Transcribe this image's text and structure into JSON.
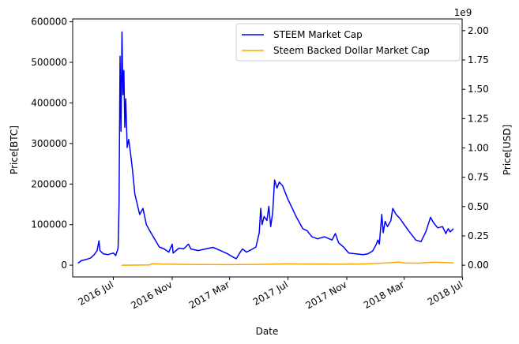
{
  "chart_data": {
    "type": "line",
    "xlabel": "Date",
    "ylabel_left": "Price[BTC]",
    "ylabel_right": "Price[USD]",
    "right_axis_offset_text": "1e9",
    "x_range": [
      "2016-04-07",
      "2018-06-30"
    ],
    "x_ticks": [
      {
        "date": "2016-07-01",
        "label": "2016 Jul"
      },
      {
        "date": "2016-11-01",
        "label": "2016 Nov"
      },
      {
        "date": "2017-03-01",
        "label": "2017 Mar"
      },
      {
        "date": "2017-07-01",
        "label": "2017 Jul"
      },
      {
        "date": "2017-11-01",
        "label": "2017 Nov"
      },
      {
        "date": "2018-03-01",
        "label": "2018 Mar"
      },
      {
        "date": "2018-07-01",
        "label": "2018 Jul"
      }
    ],
    "ylim_left": [
      -29000,
      607000
    ],
    "yticks_left": [
      {
        "value": 0,
        "label": "0"
      },
      {
        "value": 100000,
        "label": "100000"
      },
      {
        "value": 200000,
        "label": "200000"
      },
      {
        "value": 300000,
        "label": "300000"
      },
      {
        "value": 400000,
        "label": "400000"
      },
      {
        "value": 500000,
        "label": "500000"
      },
      {
        "value": 600000,
        "label": "600000"
      }
    ],
    "ylim_right": [
      -0.1,
      2.1
    ],
    "yticks_right": [
      {
        "value": 0,
        "label": "0.00"
      },
      {
        "value": 0.25,
        "label": "0.25"
      },
      {
        "value": 0.5,
        "label": "0.50"
      },
      {
        "value": 0.75,
        "label": "0.75"
      },
      {
        "value": 1.0,
        "label": "1.00"
      },
      {
        "value": 1.25,
        "label": "1.25"
      },
      {
        "value": 1.5,
        "label": "1.50"
      },
      {
        "value": 1.75,
        "label": "1.75"
      },
      {
        "value": 2.0,
        "label": "2.00"
      }
    ],
    "legend_placement": "top-right",
    "grid": false,
    "series": [
      {
        "name": "STEEM Market Cap",
        "axis": "left",
        "color": "#0000ff",
        "points": [
          [
            "2016-04-18",
            5000
          ],
          [
            "2016-04-25",
            11000
          ],
          [
            "2016-05-05",
            14000
          ],
          [
            "2016-05-15",
            18000
          ],
          [
            "2016-05-22",
            26000
          ],
          [
            "2016-05-28",
            36000
          ],
          [
            "2016-06-01",
            60000
          ],
          [
            "2016-06-03",
            36000
          ],
          [
            "2016-06-10",
            28000
          ],
          [
            "2016-06-20",
            26000
          ],
          [
            "2016-07-01",
            30000
          ],
          [
            "2016-07-06",
            24000
          ],
          [
            "2016-07-11",
            42000
          ],
          [
            "2016-07-13",
            150000
          ],
          [
            "2016-07-15",
            515000
          ],
          [
            "2016-07-17",
            330000
          ],
          [
            "2016-07-19",
            575000
          ],
          [
            "2016-07-21",
            420000
          ],
          [
            "2016-07-23",
            480000
          ],
          [
            "2016-07-25",
            340000
          ],
          [
            "2016-07-27",
            410000
          ],
          [
            "2016-07-30",
            290000
          ],
          [
            "2016-08-02",
            310000
          ],
          [
            "2016-08-06",
            275000
          ],
          [
            "2016-08-10",
            235000
          ],
          [
            "2016-08-15",
            175000
          ],
          [
            "2016-08-20",
            150000
          ],
          [
            "2016-08-25",
            125000
          ],
          [
            "2016-09-01",
            140000
          ],
          [
            "2016-09-08",
            100000
          ],
          [
            "2016-09-15",
            85000
          ],
          [
            "2016-09-25",
            65000
          ],
          [
            "2016-10-05",
            45000
          ],
          [
            "2016-10-15",
            40000
          ],
          [
            "2016-10-25",
            32000
          ],
          [
            "2016-11-01",
            52000
          ],
          [
            "2016-11-03",
            30000
          ],
          [
            "2016-11-15",
            42000
          ],
          [
            "2016-11-25",
            40000
          ],
          [
            "2016-12-05",
            52000
          ],
          [
            "2016-12-10",
            40000
          ],
          [
            "2016-12-25",
            36000
          ],
          [
            "2017-01-10",
            40000
          ],
          [
            "2017-01-25",
            44000
          ],
          [
            "2017-02-10",
            36000
          ],
          [
            "2017-02-25",
            28000
          ],
          [
            "2017-03-05",
            22000
          ],
          [
            "2017-03-15",
            16000
          ],
          [
            "2017-03-22",
            30000
          ],
          [
            "2017-03-28",
            40000
          ],
          [
            "2017-04-05",
            32000
          ],
          [
            "2017-04-15",
            38000
          ],
          [
            "2017-04-25",
            45000
          ],
          [
            "2017-05-02",
            80000
          ],
          [
            "2017-05-05",
            140000
          ],
          [
            "2017-05-08",
            100000
          ],
          [
            "2017-05-12",
            120000
          ],
          [
            "2017-05-18",
            110000
          ],
          [
            "2017-05-22",
            145000
          ],
          [
            "2017-05-26",
            95000
          ],
          [
            "2017-05-30",
            130000
          ],
          [
            "2017-06-03",
            210000
          ],
          [
            "2017-06-08",
            190000
          ],
          [
            "2017-06-13",
            205000
          ],
          [
            "2017-06-20",
            195000
          ],
          [
            "2017-06-30",
            165000
          ],
          [
            "2017-07-10",
            140000
          ],
          [
            "2017-07-18",
            120000
          ],
          [
            "2017-07-25",
            105000
          ],
          [
            "2017-08-01",
            90000
          ],
          [
            "2017-08-10",
            85000
          ],
          [
            "2017-08-20",
            70000
          ],
          [
            "2017-09-01",
            65000
          ],
          [
            "2017-09-15",
            70000
          ],
          [
            "2017-10-01",
            62000
          ],
          [
            "2017-10-08",
            78000
          ],
          [
            "2017-10-15",
            55000
          ],
          [
            "2017-10-25",
            45000
          ],
          [
            "2017-11-05",
            30000
          ],
          [
            "2017-11-20",
            28000
          ],
          [
            "2017-12-05",
            26000
          ],
          [
            "2017-12-15",
            28000
          ],
          [
            "2017-12-25",
            35000
          ],
          [
            "2018-01-01",
            50000
          ],
          [
            "2018-01-05",
            62000
          ],
          [
            "2018-01-08",
            52000
          ],
          [
            "2018-01-13",
            125000
          ],
          [
            "2018-01-16",
            80000
          ],
          [
            "2018-01-20",
            108000
          ],
          [
            "2018-01-25",
            95000
          ],
          [
            "2018-02-01",
            110000
          ],
          [
            "2018-02-05",
            140000
          ],
          [
            "2018-02-12",
            125000
          ],
          [
            "2018-02-20",
            115000
          ],
          [
            "2018-03-01",
            100000
          ],
          [
            "2018-03-10",
            85000
          ],
          [
            "2018-03-20",
            70000
          ],
          [
            "2018-03-25",
            62000
          ],
          [
            "2018-04-05",
            58000
          ],
          [
            "2018-04-15",
            82000
          ],
          [
            "2018-04-20",
            100000
          ],
          [
            "2018-04-25",
            118000
          ],
          [
            "2018-05-01",
            105000
          ],
          [
            "2018-05-10",
            92000
          ],
          [
            "2018-05-20",
            95000
          ],
          [
            "2018-05-27",
            78000
          ],
          [
            "2018-06-01",
            90000
          ],
          [
            "2018-06-05",
            82000
          ],
          [
            "2018-06-12",
            90000
          ]
        ]
      },
      {
        "name": "Steem Backed Dollar Market Cap",
        "axis": "right",
        "color": "#ffa500",
        "points": [
          [
            "2016-07-18",
            0.0
          ],
          [
            "2016-08-15",
            0.001
          ],
          [
            "2016-09-15",
            0.002
          ],
          [
            "2016-09-20",
            0.013
          ],
          [
            "2016-10-15",
            0.009
          ],
          [
            "2016-12-01",
            0.007
          ],
          [
            "2017-03-01",
            0.005
          ],
          [
            "2017-05-01",
            0.007
          ],
          [
            "2017-07-01",
            0.012
          ],
          [
            "2017-09-01",
            0.009
          ],
          [
            "2017-11-01",
            0.008
          ],
          [
            "2017-12-15",
            0.012
          ],
          [
            "2018-01-15",
            0.018
          ],
          [
            "2018-02-01",
            0.022
          ],
          [
            "2018-02-15",
            0.026
          ],
          [
            "2018-03-01",
            0.02
          ],
          [
            "2018-04-01",
            0.018
          ],
          [
            "2018-05-01",
            0.026
          ],
          [
            "2018-06-01",
            0.022
          ],
          [
            "2018-06-12",
            0.02
          ]
        ]
      }
    ]
  }
}
